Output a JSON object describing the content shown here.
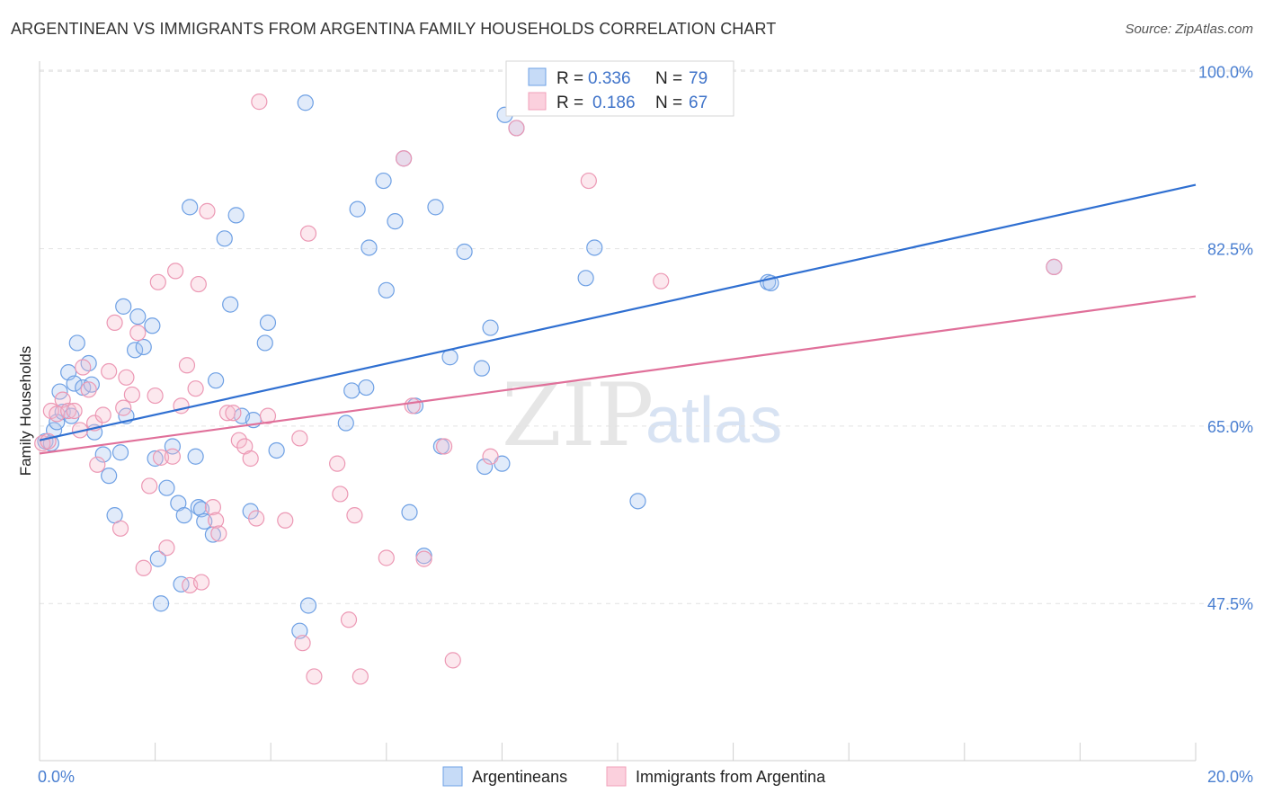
{
  "header": {
    "title": "ARGENTINEAN VS IMMIGRANTS FROM ARGENTINA FAMILY HOUSEHOLDS CORRELATION CHART",
    "source": "Source: ZipAtlas.com"
  },
  "legend": {
    "row1": {
      "r_label": "R =",
      "r_value": "0.336",
      "n_label": "N =",
      "n_value": "79"
    },
    "row2": {
      "r_label": "R =",
      "r_value": "0.186",
      "n_label": "N =",
      "n_value": "67"
    }
  },
  "bottom_legend": {
    "series1": "Argentineans",
    "series2": "Immigrants from Argentina"
  },
  "watermark": {
    "zip": "ZIP",
    "atlas": "atlas"
  },
  "colors": {
    "blue": "#6ea0e4",
    "blue_line": "#2f6fd1",
    "pink": "#f0a0ba",
    "pink_line": "#e0709a",
    "tick_text": "#4a7fd1"
  },
  "chart_data": {
    "type": "scatter",
    "title": "ARGENTINEAN VS IMMIGRANTS FROM ARGENTINA FAMILY HOUSEHOLDS CORRELATION CHART",
    "xlabel": "",
    "ylabel": "Family Households",
    "xlim": [
      0,
      20
    ],
    "ylim": [
      32,
      101
    ],
    "x_tick_labels": [
      "0.0%",
      "20.0%"
    ],
    "y_ticks": [
      47.5,
      65.0,
      82.5,
      100.0
    ],
    "y_tick_labels": [
      "47.5%",
      "65.0%",
      "82.5%",
      "100.0%"
    ],
    "grid": true,
    "legend_position": "top-center",
    "series": [
      {
        "name": "Argentineans",
        "color": "#6ea0e4",
        "trend": {
          "x": [
            0,
            20
          ],
          "y": [
            63.6,
            88.8
          ]
        },
        "points": [
          [
            0.1,
            63.5
          ],
          [
            0.2,
            63.3
          ],
          [
            0.25,
            64.6
          ],
          [
            0.3,
            65.4
          ],
          [
            0.4,
            66.4
          ],
          [
            0.35,
            68.4
          ],
          [
            0.55,
            66.0
          ],
          [
            0.5,
            70.3
          ],
          [
            0.6,
            69.2
          ],
          [
            0.75,
            68.8
          ],
          [
            0.85,
            71.2
          ],
          [
            0.65,
            73.2
          ],
          [
            0.9,
            69.1
          ],
          [
            0.95,
            64.4
          ],
          [
            1.1,
            62.2
          ],
          [
            1.2,
            60.1
          ],
          [
            1.3,
            56.2
          ],
          [
            1.4,
            62.4
          ],
          [
            1.45,
            76.8
          ],
          [
            1.5,
            66.0
          ],
          [
            1.65,
            72.5
          ],
          [
            1.7,
            75.8
          ],
          [
            1.8,
            72.8
          ],
          [
            1.95,
            74.9
          ],
          [
            2.0,
            61.8
          ],
          [
            2.05,
            51.9
          ],
          [
            2.1,
            47.5
          ],
          [
            2.2,
            58.9
          ],
          [
            2.3,
            63.0
          ],
          [
            2.4,
            57.4
          ],
          [
            2.45,
            49.4
          ],
          [
            2.5,
            56.2
          ],
          [
            2.6,
            86.6
          ],
          [
            2.7,
            62.0
          ],
          [
            2.75,
            57.0
          ],
          [
            2.8,
            56.8
          ],
          [
            2.85,
            55.6
          ],
          [
            3.0,
            54.3
          ],
          [
            3.05,
            69.5
          ],
          [
            3.2,
            83.5
          ],
          [
            3.3,
            77.0
          ],
          [
            3.4,
            85.8
          ],
          [
            3.5,
            66.0
          ],
          [
            3.65,
            56.6
          ],
          [
            3.7,
            65.6
          ],
          [
            3.9,
            73.2
          ],
          [
            3.95,
            75.2
          ],
          [
            4.1,
            62.6
          ],
          [
            4.6,
            96.9
          ],
          [
            4.5,
            44.8
          ],
          [
            4.65,
            47.3
          ],
          [
            5.3,
            65.3
          ],
          [
            5.4,
            68.5
          ],
          [
            5.5,
            86.4
          ],
          [
            5.65,
            68.8
          ],
          [
            5.7,
            82.6
          ],
          [
            5.95,
            89.2
          ],
          [
            6.0,
            78.4
          ],
          [
            6.15,
            85.2
          ],
          [
            6.3,
            91.4
          ],
          [
            6.4,
            56.5
          ],
          [
            6.5,
            67.0
          ],
          [
            6.65,
            52.2
          ],
          [
            6.85,
            86.6
          ],
          [
            6.95,
            63.0
          ],
          [
            7.1,
            71.8
          ],
          [
            7.35,
            82.2
          ],
          [
            7.7,
            61.0
          ],
          [
            7.65,
            70.7
          ],
          [
            7.8,
            74.7
          ],
          [
            8.0,
            61.3
          ],
          [
            8.05,
            95.7
          ],
          [
            8.25,
            94.4
          ],
          [
            9.45,
            79.6
          ],
          [
            9.6,
            82.6
          ],
          [
            10.35,
            57.6
          ],
          [
            12.6,
            79.2
          ],
          [
            12.65,
            79.1
          ],
          [
            17.55,
            80.7
          ]
        ]
      },
      {
        "name": "Immigrants from Argentina",
        "color": "#f0a0ba",
        "trend": {
          "x": [
            0,
            20
          ],
          "y": [
            62.3,
            77.8
          ]
        },
        "points": [
          [
            0.05,
            63.3
          ],
          [
            0.15,
            63.5
          ],
          [
            0.2,
            66.5
          ],
          [
            0.3,
            66.2
          ],
          [
            0.4,
            67.6
          ],
          [
            0.5,
            66.5
          ],
          [
            0.6,
            66.5
          ],
          [
            0.7,
            64.6
          ],
          [
            0.75,
            70.8
          ],
          [
            0.85,
            68.6
          ],
          [
            0.95,
            65.3
          ],
          [
            1.0,
            61.2
          ],
          [
            1.1,
            66.1
          ],
          [
            1.2,
            70.4
          ],
          [
            1.3,
            75.2
          ],
          [
            1.4,
            54.9
          ],
          [
            1.45,
            66.8
          ],
          [
            1.5,
            69.8
          ],
          [
            1.6,
            68.1
          ],
          [
            1.7,
            74.2
          ],
          [
            1.8,
            51.0
          ],
          [
            1.9,
            59.1
          ],
          [
            2.0,
            68.0
          ],
          [
            2.05,
            79.2
          ],
          [
            2.1,
            61.9
          ],
          [
            2.2,
            53.0
          ],
          [
            2.3,
            62.0
          ],
          [
            2.35,
            80.3
          ],
          [
            2.45,
            67.0
          ],
          [
            2.55,
            71.0
          ],
          [
            2.6,
            49.3
          ],
          [
            2.7,
            68.7
          ],
          [
            2.75,
            79.0
          ],
          [
            2.8,
            49.6
          ],
          [
            2.9,
            86.2
          ],
          [
            3.0,
            57.0
          ],
          [
            3.05,
            55.7
          ],
          [
            3.1,
            54.4
          ],
          [
            3.25,
            66.3
          ],
          [
            3.35,
            66.3
          ],
          [
            3.45,
            63.6
          ],
          [
            3.55,
            63.0
          ],
          [
            3.65,
            61.8
          ],
          [
            3.75,
            55.9
          ],
          [
            3.8,
            97.0
          ],
          [
            3.95,
            66.0
          ],
          [
            4.25,
            55.7
          ],
          [
            4.5,
            63.8
          ],
          [
            4.65,
            84.0
          ],
          [
            4.55,
            43.6
          ],
          [
            4.75,
            40.3
          ],
          [
            5.15,
            61.3
          ],
          [
            5.2,
            58.3
          ],
          [
            5.35,
            45.9
          ],
          [
            5.45,
            56.2
          ],
          [
            5.55,
            40.3
          ],
          [
            6.0,
            52.0
          ],
          [
            6.3,
            91.4
          ],
          [
            6.45,
            67.0
          ],
          [
            6.65,
            51.9
          ],
          [
            7.0,
            63.0
          ],
          [
            7.15,
            41.9
          ],
          [
            7.8,
            62.0
          ],
          [
            8.25,
            94.4
          ],
          [
            9.5,
            89.2
          ],
          [
            10.75,
            79.3
          ],
          [
            17.55,
            80.7
          ]
        ]
      }
    ]
  }
}
